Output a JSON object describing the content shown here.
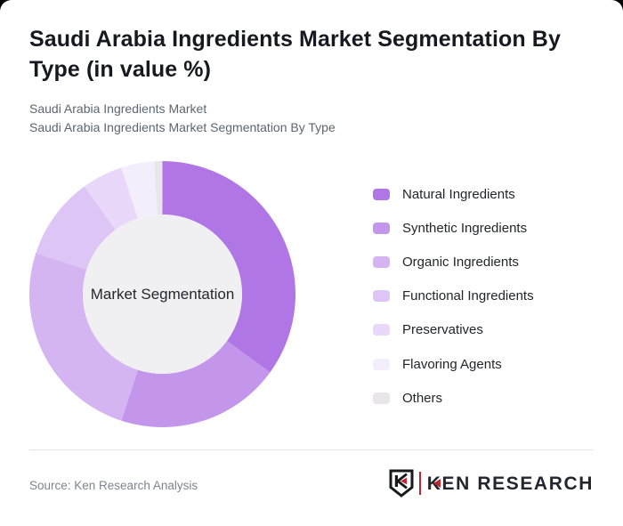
{
  "page": {
    "background_color": "#000000",
    "card_color": "#ffffff"
  },
  "header": {
    "title": "Saudi Arabia Ingredients Market Segmentation By Type (in value %)",
    "subtitle_line1": "Saudi Arabia Ingredients Market",
    "subtitle_line2": "Saudi Arabia Ingredients Market Segmentation By Type"
  },
  "chart_data": {
    "type": "pie",
    "variant": "donut",
    "title": "Saudi Arabia Ingredients Market Segmentation By Type (in value %)",
    "center_label": "Market Segmentation",
    "unit": "value %",
    "categories": [
      "Natural Ingredients",
      "Synthetic Ingredients",
      "Organic Ingredients",
      "Functional Ingredients",
      "Preservatives",
      "Flavoring Agents",
      "Others"
    ],
    "values": [
      35,
      20,
      25,
      10,
      5,
      4,
      1
    ],
    "colors": [
      "#b176e6",
      "#c396ec",
      "#d4b5f1",
      "#ddc6f5",
      "#e9d8f9",
      "#f4edfc",
      "#e8e6ea"
    ],
    "start_angle_deg": 0,
    "direction": "clockwise",
    "donut_hole_color": "#f0eff2",
    "outer_radius_px": 149.5,
    "inner_radius_px": 89.5,
    "legend_position": "right",
    "labels_shown": false
  },
  "footer": {
    "source": "Source: Ken Research Analysis",
    "logo": {
      "shield_letter": "K",
      "brand_k": "K",
      "brand_rest": "EN RESEARCH",
      "accent_color": "#c0272d",
      "text_color": "#23262e",
      "outline_color": "#17191d"
    }
  }
}
